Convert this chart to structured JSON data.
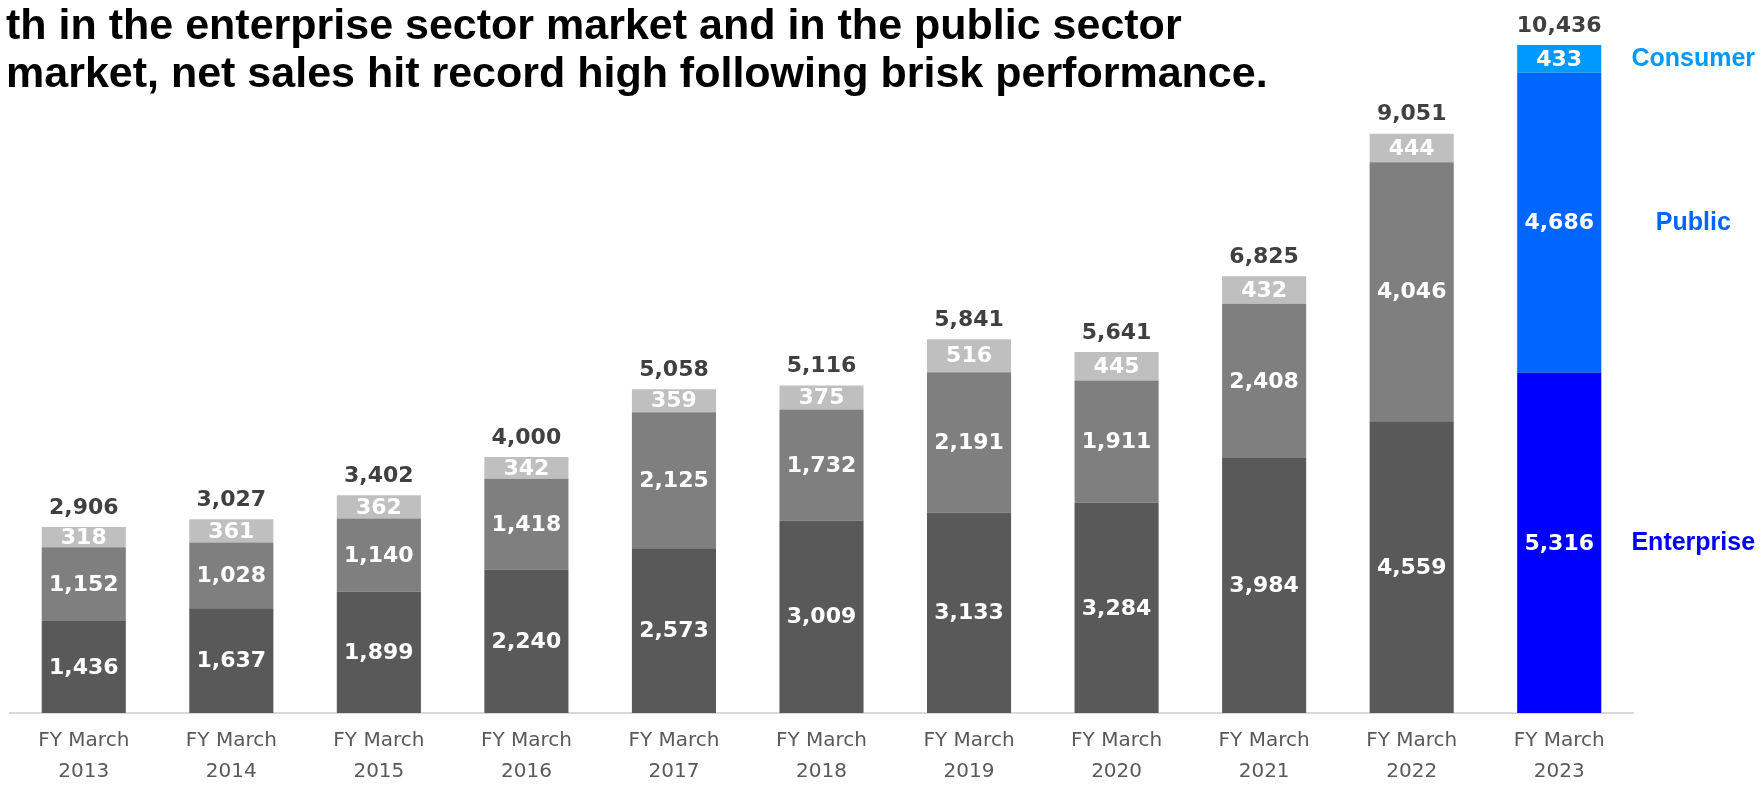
{
  "chart_data": {
    "type": "bar",
    "title": "th in the enterprise sector market and in the public sector market, net sales hit record high following brisk performance.",
    "categories": [
      "FY March 2013",
      "FY March 2014",
      "FY March 2015",
      "FY March 2016",
      "FY March 2017",
      "FY March 2018",
      "FY March 2019",
      "FY March 2020",
      "FY March 2021",
      "FY March 2022",
      "FY March 2023"
    ],
    "stacked": true,
    "series": [
      {
        "name": "Enterprise",
        "colors": [
          "#595959",
          "#595959",
          "#595959",
          "#595959",
          "#595959",
          "#595959",
          "#595959",
          "#595959",
          "#595959",
          "#595959",
          "#0000ff"
        ],
        "values": [
          1436,
          1637,
          1899,
          2240,
          2573,
          3009,
          3133,
          3284,
          3984,
          4559,
          5316
        ],
        "value_labels": [
          "1,436",
          "1,637",
          "1,899",
          "2,240",
          "2,573",
          "3,009",
          "3,133",
          "3,284",
          "3,984",
          "4,559",
          "5,316"
        ]
      },
      {
        "name": "Public",
        "colors": [
          "#7f7f7f",
          "#7f7f7f",
          "#7f7f7f",
          "#7f7f7f",
          "#7f7f7f",
          "#7f7f7f",
          "#7f7f7f",
          "#7f7f7f",
          "#7f7f7f",
          "#7f7f7f",
          "#0066ff"
        ],
        "values": [
          1152,
          1028,
          1140,
          1418,
          2125,
          1732,
          2191,
          1911,
          2408,
          4046,
          4686
        ],
        "value_labels": [
          "1,152",
          "1,028",
          "1,140",
          "1,418",
          "2,125",
          "1,732",
          "2,191",
          "1,911",
          "2,408",
          "4,046",
          "4,686"
        ]
      },
      {
        "name": "Consumer",
        "colors": [
          "#bfbfbf",
          "#bfbfbf",
          "#bfbfbf",
          "#bfbfbf",
          "#bfbfbf",
          "#bfbfbf",
          "#bfbfbf",
          "#bfbfbf",
          "#bfbfbf",
          "#bfbfbf",
          "#0099ff"
        ],
        "values": [
          318,
          361,
          362,
          342,
          359,
          375,
          516,
          445,
          432,
          444,
          433
        ],
        "value_labels": [
          "318",
          "361",
          "362",
          "342",
          "359",
          "375",
          "516",
          "445",
          "432",
          "444",
          "433"
        ]
      }
    ],
    "totals": [
      "2,906",
      "3,027",
      "3,402",
      "4,000",
      "5,058",
      "5,116",
      "5,841",
      "5,641",
      "6,825",
      "9,051",
      "10,436"
    ],
    "legend": "right",
    "tick_labels": "x"
  }
}
